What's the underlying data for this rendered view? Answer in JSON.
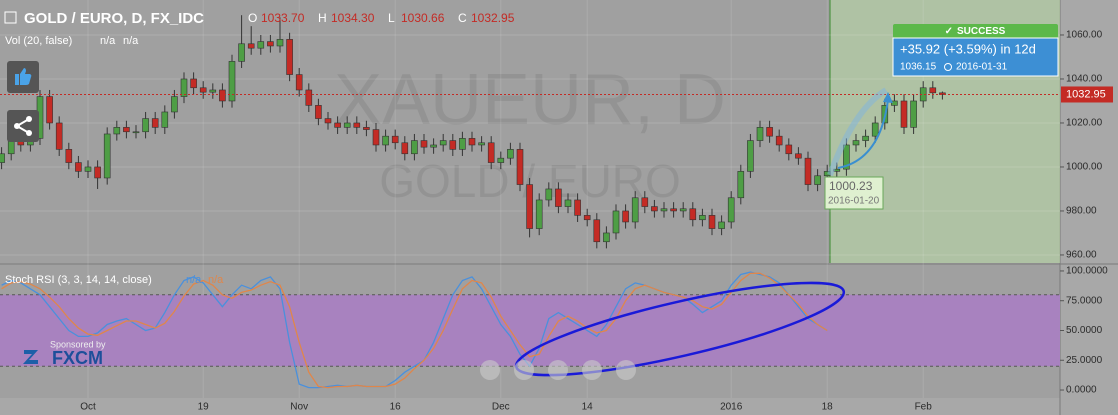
{
  "chart_data": [
    {
      "type": "candlestick",
      "title": "GOLD / EURO, D, FX_IDC",
      "ohlc": [
        [
          "O",
          "1033.70"
        ],
        [
          "H",
          "1034.30"
        ],
        [
          "L",
          "1030.66"
        ],
        [
          "C",
          "1032.95"
        ]
      ],
      "indicator": "Vol (20, false)",
      "indicator_values": [
        "n/a",
        "n/a"
      ],
      "watermark": [
        "XAUEUR, D",
        "GOLD / EURO"
      ],
      "sponsor": [
        "Sponsored by",
        "FXCM"
      ],
      "prediction": {
        "status": "SUCCESS",
        "change": "+35.92 (+3.59%) in 12d",
        "target": "1036.15",
        "target_date": "2016-01-31",
        "start": "1000.23",
        "start_date": "2016-01-20"
      },
      "up_color": "#4e9e45",
      "down_color": "#c42b25",
      "categories": [
        null,
        null,
        null,
        null,
        null,
        null,
        null,
        null,
        null,
        "Oct",
        null,
        null,
        null,
        null,
        null,
        null,
        null,
        null,
        null,
        null,
        null,
        "19",
        null,
        null,
        null,
        null,
        null,
        null,
        null,
        null,
        null,
        "Nov",
        null,
        null,
        null,
        null,
        null,
        null,
        null,
        null,
        null,
        "16",
        null,
        null,
        null,
        null,
        null,
        null,
        null,
        null,
        null,
        null,
        "Dec",
        null,
        null,
        null,
        null,
        null,
        null,
        null,
        null,
        "14",
        null,
        null,
        null,
        null,
        null,
        null,
        null,
        null,
        null,
        null,
        null,
        null,
        null,
        null,
        "2016",
        null,
        null,
        null,
        null,
        null,
        null,
        null,
        null,
        null,
        "18",
        null,
        null,
        null,
        null,
        null,
        null,
        null,
        null,
        null,
        "Feb",
        null,
        null
      ],
      "open": [
        1002,
        1006,
        1012,
        1010,
        1013,
        1032,
        1020,
        1008,
        1002,
        998,
        1000,
        995,
        1015,
        1018,
        1016,
        1016,
        1022,
        1018,
        1025,
        1032,
        1040,
        1036,
        1034,
        1035,
        1030,
        1048,
        1056,
        1054,
        1057,
        1055,
        1058,
        1042,
        1035,
        1028,
        1022,
        1020,
        1018,
        1020,
        1018,
        1017,
        1010,
        1014,
        1011,
        1006,
        1012,
        1009,
        1010,
        1012,
        1008,
        1013,
        1010,
        1011,
        1002,
        1004,
        1008,
        992,
        972,
        985,
        990,
        982,
        985,
        978,
        976,
        966,
        970,
        980,
        975,
        986,
        982,
        980,
        981,
        980,
        981,
        976,
        978,
        972,
        975,
        986,
        998,
        1012,
        1018,
        1014,
        1010,
        1006,
        1004,
        992,
        996,
        998,
        999,
        1010,
        1012,
        1014,
        1020,
        1028,
        1030,
        1018,
        1030,
        1036,
        1033.7
      ],
      "high": [
        1009,
        1015,
        1015,
        1016,
        1035,
        1035,
        1023,
        1011,
        1005,
        1003,
        1003,
        1018,
        1021,
        1021,
        1019,
        1025,
        1025,
        1028,
        1035,
        1043,
        1043,
        1039,
        1038,
        1038,
        1051,
        1069,
        1064,
        1060,
        1060,
        1068,
        1061,
        1045,
        1038,
        1031,
        1025,
        1023,
        1023,
        1023,
        1021,
        1020,
        1017,
        1017,
        1014,
        1015,
        1015,
        1013,
        1015,
        1015,
        1016,
        1016,
        1014,
        1014,
        1007,
        1011,
        1011,
        995,
        988,
        993,
        993,
        988,
        988,
        981,
        979,
        973,
        983,
        983,
        989,
        989,
        985,
        984,
        984,
        984,
        984,
        981,
        981,
        978,
        989,
        1001,
        1015,
        1021,
        1021,
        1017,
        1013,
        1009,
        1007,
        999,
        1001,
        1002,
        1013,
        1015,
        1017,
        1023,
        1031,
        1033,
        1033,
        1033,
        1039,
        1039,
        1034.3
      ],
      "low": [
        999,
        1003,
        1007,
        1007,
        1010,
        1017,
        1005,
        999,
        995,
        995,
        990,
        992,
        1012,
        1013,
        1013,
        1013,
        1015,
        1015,
        1022,
        1029,
        1033,
        1031,
        1031,
        1027,
        1027,
        1045,
        1051,
        1051,
        1052,
        1052,
        1039,
        1032,
        1025,
        1019,
        1017,
        1015,
        1015,
        1015,
        1014,
        1007,
        1007,
        1008,
        1003,
        1003,
        1006,
        1006,
        1007,
        1005,
        1005,
        1007,
        1007,
        999,
        999,
        1001,
        989,
        968,
        969,
        982,
        979,
        979,
        975,
        973,
        963,
        963,
        967,
        972,
        972,
        979,
        977,
        977,
        977,
        977,
        973,
        973,
        969,
        969,
        972,
        983,
        995,
        1009,
        1011,
        1007,
        1003,
        1001,
        989,
        989,
        993,
        995,
        996,
        1007,
        1009,
        1011,
        1017,
        1025,
        1015,
        1015,
        1027,
        1031,
        1030.66
      ],
      "close": [
        1006,
        1012,
        1010,
        1013,
        1032,
        1020,
        1008,
        1002,
        998,
        1000,
        995,
        1015,
        1018,
        1016,
        1016,
        1022,
        1018,
        1025,
        1032,
        1040,
        1036,
        1034,
        1035,
        1030,
        1048,
        1056,
        1054,
        1057,
        1055,
        1058,
        1042,
        1035,
        1028,
        1022,
        1020,
        1018,
        1020,
        1018,
        1017,
        1010,
        1014,
        1011,
        1006,
        1012,
        1009,
        1010,
        1012,
        1008,
        1013,
        1010,
        1011,
        1002,
        1004,
        1008,
        992,
        972,
        985,
        990,
        982,
        985,
        978,
        976,
        966,
        970,
        980,
        975,
        986,
        982,
        980,
        981,
        980,
        981,
        976,
        978,
        972,
        975,
        986,
        998,
        1012,
        1018,
        1014,
        1010,
        1006,
        1004,
        992,
        996,
        998,
        999,
        1010,
        1012,
        1014,
        1020,
        1028,
        1030,
        1018,
        1030,
        1036,
        1033.7,
        1032.95
      ],
      "ylim": [
        956.8,
        1075.9
      ],
      "yticks": [
        {
          "value": 960,
          "label": "960.00"
        },
        {
          "value": 980,
          "label": "980.00"
        },
        {
          "value": 1000,
          "label": "1000.00"
        },
        {
          "value": 1020,
          "label": "1020.00"
        },
        {
          "value": 1040,
          "label": "1040.00"
        },
        {
          "value": 1060,
          "label": "1060.00"
        }
      ],
      "grid": true
    },
    {
      "type": "line",
      "title": "Stoch RSI (3, 3, 14, 14, close)",
      "legend_values": [
        "n/a",
        "n/a"
      ],
      "series": [
        {
          "color": "#4a90dc",
          "values": [
            88,
            92,
            90,
            85,
            80,
            70,
            60,
            50,
            45,
            45,
            48,
            55,
            58,
            60,
            55,
            50,
            52,
            65,
            80,
            92,
            95,
            90,
            80,
            70,
            80,
            88,
            85,
            92,
            95,
            85,
            40,
            5,
            2,
            2,
            3,
            4,
            3,
            4,
            3,
            3,
            3,
            8,
            15,
            20,
            25,
            40,
            60,
            80,
            92,
            95,
            85,
            70,
            55,
            45,
            30,
            20,
            35,
            60,
            65,
            60,
            55,
            50,
            45,
            55,
            70,
            85,
            90,
            88,
            85,
            82,
            80,
            78,
            72,
            65,
            70,
            75,
            88,
            97,
            99,
            97,
            95,
            90,
            80,
            70,
            60,
            55,
            50,
            null,
            null,
            null,
            null,
            null,
            null,
            null,
            null,
            null,
            null,
            null,
            null
          ]
        },
        {
          "color": "#e0864a",
          "values": [
            85,
            90,
            91,
            89,
            85,
            78,
            70,
            60,
            52,
            47,
            46,
            50,
            54,
            58,
            58,
            55,
            52,
            56,
            66,
            79,
            89,
            92,
            88,
            80,
            77,
            82,
            84,
            88,
            91,
            88,
            70,
            40,
            15,
            3,
            2,
            3,
            3,
            4,
            3,
            3,
            3,
            5,
            10,
            18,
            25,
            35,
            50,
            68,
            85,
            92,
            90,
            78,
            62,
            50,
            38,
            28,
            30,
            45,
            58,
            62,
            58,
            52,
            48,
            50,
            60,
            75,
            85,
            88,
            85,
            82,
            80,
            78,
            75,
            70,
            68,
            72,
            82,
            92,
            98,
            98,
            94,
            88,
            80,
            72,
            62,
            55,
            50,
            null,
            null,
            null,
            null,
            null,
            null,
            null,
            null,
            null,
            null,
            null,
            null
          ]
        }
      ],
      "band": [
        20,
        80
      ],
      "band_color": "#a882bf",
      "ylim": [
        -6.7,
        105
      ],
      "yticks": [
        {
          "value": 0,
          "label": "0.0000"
        },
        {
          "value": 25,
          "label": "25.0000"
        },
        {
          "value": 50,
          "label": "50.0000"
        },
        {
          "value": 75,
          "label": "75.0000"
        },
        {
          "value": 100,
          "label": "100.0000"
        }
      ]
    }
  ]
}
